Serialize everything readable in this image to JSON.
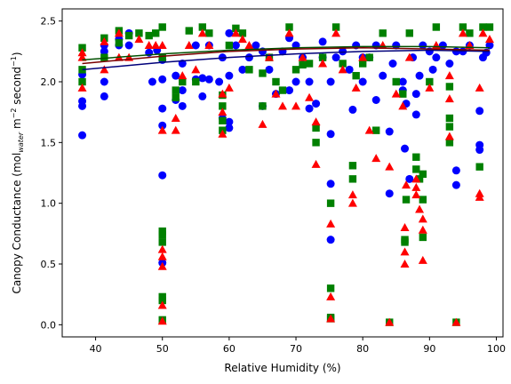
{
  "chart_data": {
    "type": "scatter",
    "xlabel": "Relative Humidity (%)",
    "ylabel_parts": {
      "main": "Canopy Conductance (mol",
      "sub": "water",
      "mid": " m",
      "sup1": "−2",
      "tail": " second",
      "sup2": "−1",
      "close": ")"
    },
    "xlim": [
      35,
      101
    ],
    "ylim": [
      -0.1,
      2.6
    ],
    "xticks": [
      40,
      50,
      60,
      70,
      80,
      90,
      100
    ],
    "yticks": [
      0.0,
      0.5,
      1.0,
      1.5,
      2.0,
      2.5
    ],
    "x_tick_labels": [
      "40",
      "50",
      "60",
      "70",
      "80",
      "90",
      "100"
    ],
    "y_tick_labels": [
      "0.0",
      "0.5",
      "1.0",
      "1.5",
      "2.0",
      "2.5"
    ],
    "grid": false,
    "series": [
      {
        "marker": "circle",
        "color": "#0000ff",
        "points": [
          [
            38,
            1.56
          ],
          [
            38,
            1.8
          ],
          [
            38,
            1.84
          ],
          [
            38,
            2.06
          ],
          [
            41.3,
            1.88
          ],
          [
            41.3,
            2.0
          ],
          [
            41.3,
            2.25
          ],
          [
            41.3,
            2.3
          ],
          [
            43.5,
            2.3
          ],
          [
            43.5,
            2.35
          ],
          [
            45,
            2.3
          ],
          [
            45,
            2.4
          ],
          [
            48,
            2.24
          ],
          [
            48.5,
            2.0
          ],
          [
            49.2,
            2.26
          ],
          [
            50,
            1.23
          ],
          [
            50,
            1.64
          ],
          [
            50,
            1.78
          ],
          [
            50,
            2.02
          ],
          [
            50,
            2.18
          ],
          [
            50,
            0.51
          ],
          [
            52,
            1.85
          ],
          [
            52,
            2.05
          ],
          [
            53,
            1.93
          ],
          [
            53,
            1.8
          ],
          [
            53,
            2.15
          ],
          [
            55,
            2.02
          ],
          [
            55,
            2.3
          ],
          [
            56,
            1.88
          ],
          [
            56,
            2.03
          ],
          [
            57,
            2.02
          ],
          [
            57,
            2.3
          ],
          [
            58.5,
            2.0
          ],
          [
            59,
            2.2
          ],
          [
            59,
            1.7
          ],
          [
            60,
            1.62
          ],
          [
            60,
            1.67
          ],
          [
            60,
            2.05
          ],
          [
            60,
            2.4
          ],
          [
            61,
            2.3
          ],
          [
            62,
            2.1
          ],
          [
            63,
            2.2
          ],
          [
            64,
            2.3
          ],
          [
            65,
            1.8
          ],
          [
            65,
            2.25
          ],
          [
            66,
            2.1
          ],
          [
            67,
            1.9
          ],
          [
            68,
            2.25
          ],
          [
            69,
            1.93
          ],
          [
            69,
            2.36
          ],
          [
            70,
            2.0
          ],
          [
            70,
            2.3
          ],
          [
            71,
            2.2
          ],
          [
            72,
            1.78
          ],
          [
            72,
            2.0
          ],
          [
            73,
            1.82
          ],
          [
            74,
            2.2
          ],
          [
            74,
            2.33
          ],
          [
            75.2,
            1.16
          ],
          [
            75.2,
            1.57
          ],
          [
            75.2,
            0.7
          ],
          [
            75.2,
            2.0
          ],
          [
            76,
            2.2
          ],
          [
            77,
            2.25
          ],
          [
            78,
            2.1
          ],
          [
            78.5,
            1.77
          ],
          [
            79,
            2.3
          ],
          [
            80,
            2.0
          ],
          [
            80,
            2.2
          ],
          [
            81,
            2.2
          ],
          [
            82,
            1.85
          ],
          [
            82,
            2.3
          ],
          [
            83,
            2.05
          ],
          [
            84,
            1.59
          ],
          [
            84,
            1.08
          ],
          [
            84.5,
            2.15
          ],
          [
            85,
            2.3
          ],
          [
            86,
            1.93
          ],
          [
            86,
            2.0
          ],
          [
            86.3,
            1.45
          ],
          [
            86.5,
            1.82
          ],
          [
            87,
            1.2
          ],
          [
            87.5,
            2.2
          ],
          [
            88,
            1.73
          ],
          [
            88,
            1.9
          ],
          [
            88.5,
            2.05
          ],
          [
            89,
            2.3
          ],
          [
            90,
            2.25
          ],
          [
            90.5,
            2.1
          ],
          [
            91,
            2.2
          ],
          [
            92,
            2.3
          ],
          [
            93,
            2.15
          ],
          [
            94,
            1.27
          ],
          [
            94,
            1.15
          ],
          [
            94,
            2.25
          ],
          [
            95,
            2.25
          ],
          [
            96,
            2.3
          ],
          [
            97.5,
            1.44
          ],
          [
            97.5,
            1.48
          ],
          [
            97.5,
            1.76
          ],
          [
            98,
            2.2
          ],
          [
            98.5,
            2.24
          ],
          [
            99,
            2.3
          ]
        ]
      },
      {
        "marker": "square",
        "color": "#008000",
        "points": [
          [
            38,
            2.0
          ],
          [
            38,
            2.1
          ],
          [
            38,
            2.28
          ],
          [
            41.3,
            2.2
          ],
          [
            41.3,
            2.36
          ],
          [
            43.5,
            2.32
          ],
          [
            43.5,
            2.42
          ],
          [
            45,
            2.38
          ],
          [
            46.5,
            2.4
          ],
          [
            48,
            2.38
          ],
          [
            49,
            2.4
          ],
          [
            50,
            0.77
          ],
          [
            50,
            0.74
          ],
          [
            50,
            0.68
          ],
          [
            50,
            0.23
          ],
          [
            50,
            0.2
          ],
          [
            50,
            0.04
          ],
          [
            50,
            2.2
          ],
          [
            50,
            2.45
          ],
          [
            52,
            1.93
          ],
          [
            52,
            1.87
          ],
          [
            53,
            2.0
          ],
          [
            54,
            2.42
          ],
          [
            55,
            2.0
          ],
          [
            56,
            2.45
          ],
          [
            57,
            2.4
          ],
          [
            59,
            1.89
          ],
          [
            59,
            1.8
          ],
          [
            59,
            1.68
          ],
          [
            59,
            1.6
          ],
          [
            60,
            2.3
          ],
          [
            61,
            2.44
          ],
          [
            62,
            2.4
          ],
          [
            63,
            2.1
          ],
          [
            65,
            1.8
          ],
          [
            65,
            2.07
          ],
          [
            66,
            2.2
          ],
          [
            67,
            2.0
          ],
          [
            68,
            1.93
          ],
          [
            69,
            2.45
          ],
          [
            70,
            2.1
          ],
          [
            71,
            2.14
          ],
          [
            72,
            2.15
          ],
          [
            73,
            1.62
          ],
          [
            73,
            1.5
          ],
          [
            74,
            2.2
          ],
          [
            75.2,
            1.0
          ],
          [
            75.2,
            0.3
          ],
          [
            75.2,
            0.06
          ],
          [
            75.2,
            0.05
          ],
          [
            76,
            2.45
          ],
          [
            77,
            2.15
          ],
          [
            78.5,
            1.31
          ],
          [
            78.5,
            1.2
          ],
          [
            79,
            2.05
          ],
          [
            80,
            2.15
          ],
          [
            81,
            2.2
          ],
          [
            82,
            1.6
          ],
          [
            83,
            2.4
          ],
          [
            84,
            0.02
          ],
          [
            85,
            2.0
          ],
          [
            86,
            1.9
          ],
          [
            86.3,
            0.7
          ],
          [
            86.3,
            0.68
          ],
          [
            86.5,
            1.03
          ],
          [
            87,
            2.4
          ],
          [
            88,
            1.38
          ],
          [
            88,
            1.28
          ],
          [
            88.5,
            1.2
          ],
          [
            89,
            1.24
          ],
          [
            89,
            1.03
          ],
          [
            89,
            0.72
          ],
          [
            90,
            2.0
          ],
          [
            91,
            2.45
          ],
          [
            93,
            1.7
          ],
          [
            93,
            1.63
          ],
          [
            93,
            1.5
          ],
          [
            93,
            1.96
          ],
          [
            94,
            0.02
          ],
          [
            95,
            2.45
          ],
          [
            96,
            2.4
          ],
          [
            97.5,
            1.3
          ],
          [
            98,
            2.45
          ],
          [
            99,
            2.45
          ]
        ]
      },
      {
        "marker": "triangle",
        "color": "#ff0000",
        "points": [
          [
            38,
            1.95
          ],
          [
            38,
            2.2
          ],
          [
            38,
            2.24
          ],
          [
            41.3,
            2.1
          ],
          [
            41.3,
            2.33
          ],
          [
            43.5,
            2.2
          ],
          [
            43.5,
            2.4
          ],
          [
            45,
            2.2
          ],
          [
            46.5,
            2.35
          ],
          [
            48,
            2.3
          ],
          [
            49,
            2.3
          ],
          [
            50,
            0.62
          ],
          [
            50,
            0.56
          ],
          [
            50,
            0.48
          ],
          [
            50,
            0.16
          ],
          [
            50,
            0.03
          ],
          [
            50,
            1.6
          ],
          [
            50,
            2.3
          ],
          [
            52,
            1.6
          ],
          [
            52,
            1.7
          ],
          [
            53,
            2.05
          ],
          [
            54,
            2.3
          ],
          [
            55,
            2.1
          ],
          [
            56,
            2.4
          ],
          [
            57,
            2.3
          ],
          [
            59,
            1.57
          ],
          [
            59,
            1.75
          ],
          [
            59,
            1.9
          ],
          [
            60,
            1.95
          ],
          [
            61,
            2.4
          ],
          [
            62,
            2.35
          ],
          [
            63,
            2.3
          ],
          [
            65,
            1.65
          ],
          [
            66,
            2.2
          ],
          [
            67,
            1.9
          ],
          [
            68,
            1.8
          ],
          [
            69,
            2.4
          ],
          [
            70,
            1.8
          ],
          [
            71,
            2.2
          ],
          [
            72,
            1.87
          ],
          [
            73,
            1.67
          ],
          [
            73,
            1.32
          ],
          [
            74,
            2.15
          ],
          [
            75.2,
            0.83
          ],
          [
            75.2,
            0.23
          ],
          [
            75.2,
            0.05
          ],
          [
            76,
            2.4
          ],
          [
            77,
            2.1
          ],
          [
            78.5,
            1.07
          ],
          [
            78.5,
            1.0
          ],
          [
            79,
            1.95
          ],
          [
            80,
            2.2
          ],
          [
            81,
            1.6
          ],
          [
            82,
            1.37
          ],
          [
            83,
            2.3
          ],
          [
            84,
            1.3
          ],
          [
            84,
            0.02
          ],
          [
            85,
            1.9
          ],
          [
            86,
            1.8
          ],
          [
            86.3,
            0.8
          ],
          [
            86.3,
            0.6
          ],
          [
            86.3,
            0.5
          ],
          [
            86.5,
            1.15
          ],
          [
            87,
            2.2
          ],
          [
            88,
            1.2
          ],
          [
            88,
            1.13
          ],
          [
            88,
            1.07
          ],
          [
            88.5,
            0.95
          ],
          [
            89,
            0.87
          ],
          [
            89,
            0.78
          ],
          [
            89,
            0.53
          ],
          [
            90,
            1.95
          ],
          [
            91,
            2.3
          ],
          [
            93,
            1.86
          ],
          [
            93,
            1.55
          ],
          [
            93,
            2.05
          ],
          [
            94,
            0.02
          ],
          [
            95,
            2.4
          ],
          [
            96,
            2.3
          ],
          [
            97.5,
            1.08
          ],
          [
            97.5,
            1.05
          ],
          [
            97.5,
            1.95
          ],
          [
            98,
            2.4
          ],
          [
            99,
            2.35
          ]
        ]
      }
    ],
    "lines": [
      {
        "color": "#00007a",
        "x": [
          38,
          50,
          60,
          70,
          80,
          90,
          99
        ],
        "y": [
          2.1,
          2.16,
          2.2,
          2.23,
          2.25,
          2.26,
          2.25
        ]
      },
      {
        "color": "#005000",
        "x": [
          38,
          50,
          60,
          70,
          80,
          90,
          99
        ],
        "y": [
          2.18,
          2.23,
          2.26,
          2.28,
          2.29,
          2.29,
          2.28
        ]
      },
      {
        "color": "#7a0000",
        "x": [
          38,
          50,
          60,
          70,
          80,
          90,
          99
        ],
        "y": [
          2.15,
          2.21,
          2.25,
          2.27,
          2.28,
          2.27,
          2.26
        ]
      }
    ]
  }
}
